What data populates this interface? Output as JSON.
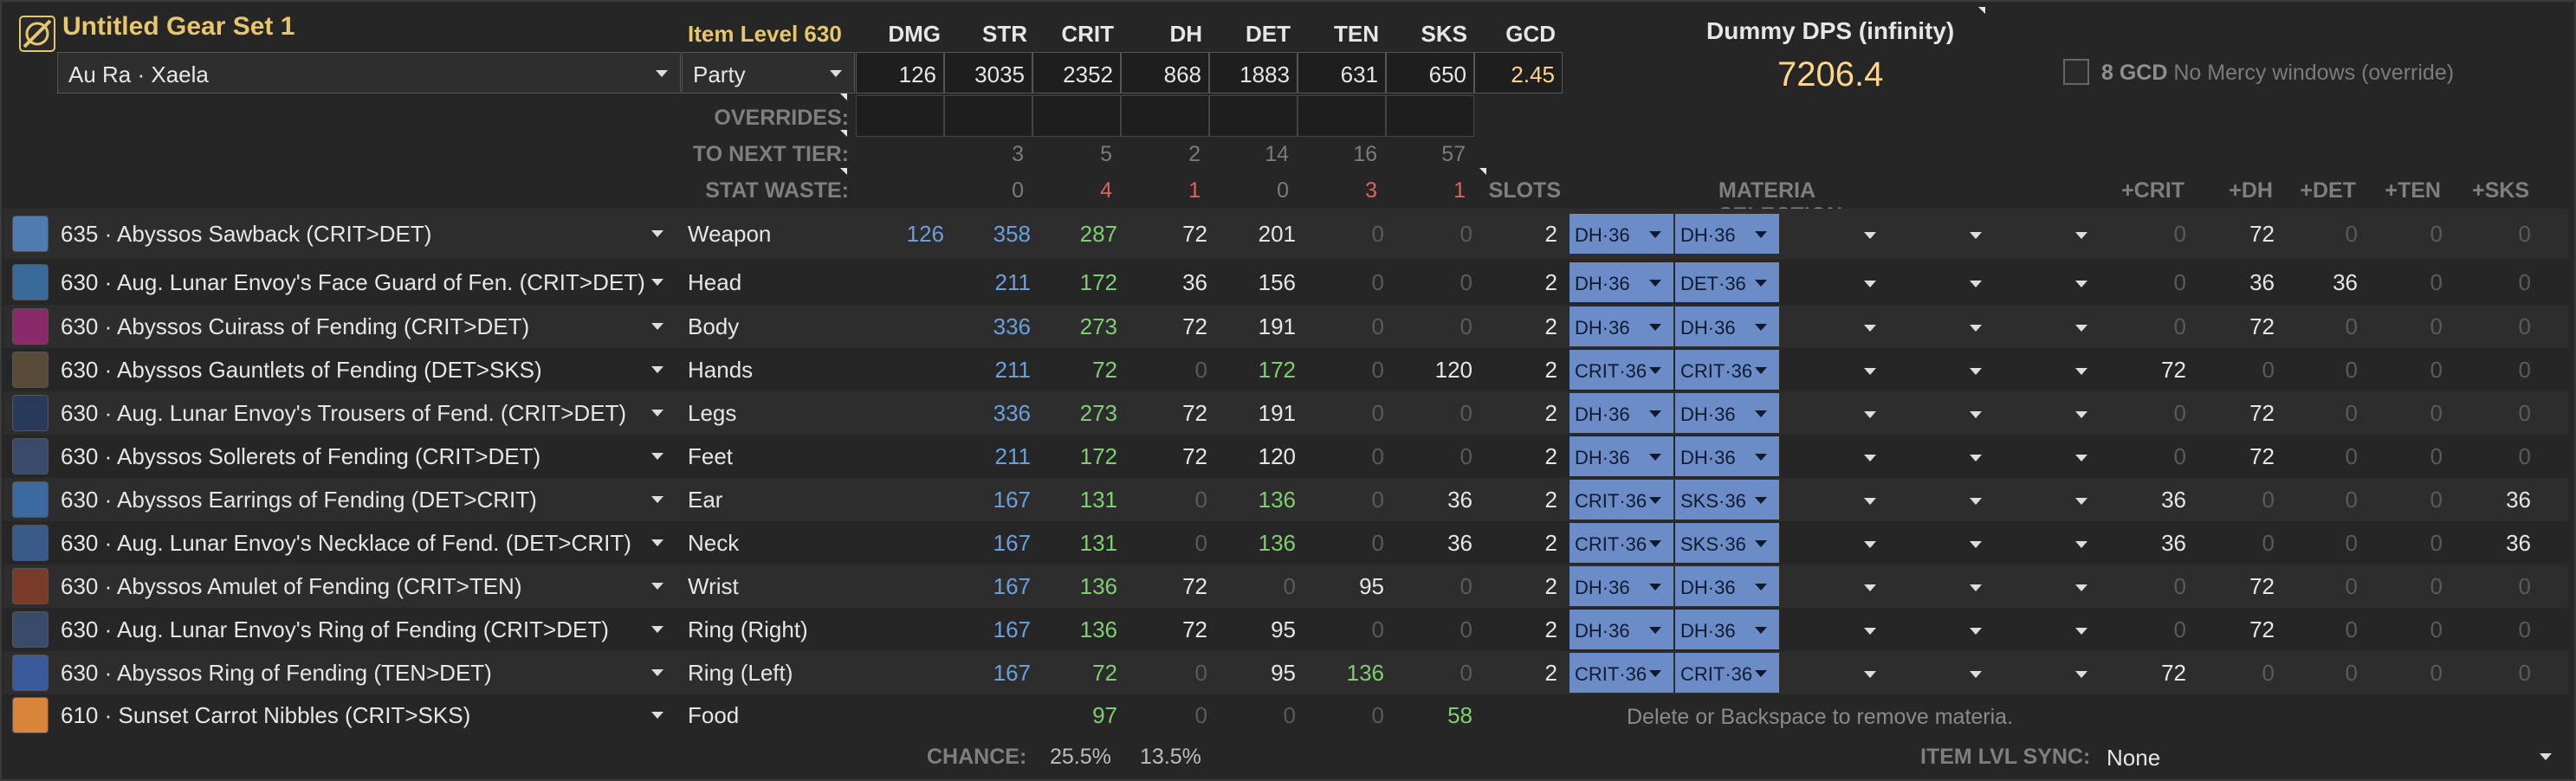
{
  "header": {
    "set_title": "Untitled Gear Set 1",
    "race": "Au Ra · Xaela",
    "party": "Party",
    "item_level": "Item Level 630",
    "stat_names": [
      "DMG",
      "STR",
      "CRIT",
      "DH",
      "DET",
      "TEN",
      "SKS",
      "GCD"
    ],
    "totals": [
      "126",
      "3035",
      "2352",
      "868",
      "1883",
      "631",
      "650",
      "2.45"
    ],
    "overrides_label": "OVERRIDES:",
    "next_tier_label": "TO NEXT TIER:",
    "next_tier": [
      "3",
      "5",
      "2",
      "14",
      "16",
      "57"
    ],
    "waste_label": "STAT WASTE:",
    "waste": [
      "0",
      "4",
      "1",
      "0",
      "3",
      "1"
    ],
    "slots_label": "SLOTS",
    "materia_label": "MATERIA SELECTION",
    "bonus_cols": [
      "+CRIT",
      "+DH",
      "+DET",
      "+TEN",
      "+SKS"
    ]
  },
  "dps": {
    "title": "Dummy DPS (infinity)",
    "value": "7206.4",
    "checkbox_num": "8 GCD",
    "checkbox_text": "No Mercy windows (override)"
  },
  "rows": [
    {
      "name": "635 · Abyssos Sawback (CRIT>DET)",
      "slot": "Weapon",
      "dmg": "126",
      "str": "358",
      "crit": "287",
      "dh": "72",
      "det": "201",
      "ten": "0",
      "sks": "0",
      "slots": "2",
      "m1": "DH·36",
      "m2": "DH·36",
      "b": [
        "0",
        "72",
        "0",
        "0",
        "0"
      ],
      "icon_color": "#4e7bb0"
    },
    {
      "name": "630 · Aug. Lunar Envoy's Face Guard of Fen. (CRIT>DET)",
      "slot": "Head",
      "dmg": "",
      "str": "211",
      "crit": "172",
      "dh": "36",
      "det": "156",
      "ten": "0",
      "sks": "0",
      "slots": "2",
      "m1": "DH·36",
      "m2": "DET·36",
      "b": [
        "0",
        "36",
        "36",
        "0",
        "0"
      ],
      "icon_color": "#3a6a9a"
    },
    {
      "name": "630 · Abyssos Cuirass of Fending (CRIT>DET)",
      "slot": "Body",
      "dmg": "",
      "str": "336",
      "crit": "273",
      "dh": "72",
      "det": "191",
      "ten": "0",
      "sks": "0",
      "slots": "2",
      "m1": "DH·36",
      "m2": "DH·36",
      "b": [
        "0",
        "72",
        "0",
        "0",
        "0"
      ],
      "icon_color": "#8a2a6a"
    },
    {
      "name": "630 · Abyssos Gauntlets of Fending (DET>SKS)",
      "slot": "Hands",
      "dmg": "",
      "str": "211",
      "crit": "72",
      "dh": "0",
      "det": "172",
      "ten": "0",
      "sks": "120",
      "slots": "2",
      "m1": "CRIT·36",
      "m2": "CRIT·36",
      "b": [
        "72",
        "0",
        "0",
        "0",
        "0"
      ],
      "icon_color": "#5a4a3a"
    },
    {
      "name": "630 · Aug. Lunar Envoy's Trousers of Fend. (CRIT>DET)",
      "slot": "Legs",
      "dmg": "",
      "str": "336",
      "crit": "273",
      "dh": "72",
      "det": "191",
      "ten": "0",
      "sks": "0",
      "slots": "2",
      "m1": "DH·36",
      "m2": "DH·36",
      "b": [
        "0",
        "72",
        "0",
        "0",
        "0"
      ],
      "icon_color": "#2a3a5a"
    },
    {
      "name": "630 · Abyssos Sollerets of Fending (CRIT>DET)",
      "slot": "Feet",
      "dmg": "",
      "str": "211",
      "crit": "172",
      "dh": "72",
      "det": "120",
      "ten": "0",
      "sks": "0",
      "slots": "2",
      "m1": "DH·36",
      "m2": "DH·36",
      "b": [
        "0",
        "72",
        "0",
        "0",
        "0"
      ],
      "icon_color": "#3a4a6a"
    },
    {
      "name": "630 · Abyssos Earrings of Fending (DET>CRIT)",
      "slot": "Ear",
      "dmg": "",
      "str": "167",
      "crit": "131",
      "dh": "0",
      "det": "136",
      "ten": "0",
      "sks": "36",
      "slots": "2",
      "m1": "CRIT·36",
      "m2": "SKS·36",
      "b": [
        "36",
        "0",
        "0",
        "0",
        "36"
      ],
      "icon_color": "#3a6aa0"
    },
    {
      "name": "630 · Aug. Lunar Envoy's Necklace of Fend. (DET>CRIT)",
      "slot": "Neck",
      "dmg": "",
      "str": "167",
      "crit": "131",
      "dh": "0",
      "det": "136",
      "ten": "0",
      "sks": "36",
      "slots": "2",
      "m1": "CRIT·36",
      "m2": "SKS·36",
      "b": [
        "36",
        "0",
        "0",
        "0",
        "36"
      ],
      "icon_color": "#3a5a8a"
    },
    {
      "name": "630 · Abyssos Amulet of Fending (CRIT>TEN)",
      "slot": "Wrist",
      "dmg": "",
      "str": "167",
      "crit": "136",
      "dh": "72",
      "det": "0",
      "ten": "95",
      "sks": "0",
      "slots": "2",
      "m1": "DH·36",
      "m2": "DH·36",
      "b": [
        "0",
        "72",
        "0",
        "0",
        "0"
      ],
      "icon_color": "#7a3a2a"
    },
    {
      "name": "630 · Aug. Lunar Envoy's Ring of Fending (CRIT>DET)",
      "slot": "Ring (Right)",
      "dmg": "",
      "str": "167",
      "crit": "136",
      "dh": "72",
      "det": "95",
      "ten": "0",
      "sks": "0",
      "slots": "2",
      "m1": "DH·36",
      "m2": "DH·36",
      "b": [
        "0",
        "72",
        "0",
        "0",
        "0"
      ],
      "icon_color": "#3a4a6a"
    },
    {
      "name": "630 · Abyssos Ring of Fending (TEN>DET)",
      "slot": "Ring (Left)",
      "dmg": "",
      "str": "167",
      "crit": "72",
      "dh": "0",
      "det": "95",
      "ten": "136",
      "sks": "0",
      "slots": "2",
      "m1": "CRIT·36",
      "m2": "CRIT·36",
      "b": [
        "72",
        "0",
        "0",
        "0",
        "0"
      ],
      "icon_color": "#3a5a9a"
    },
    {
      "name": "610 · Sunset Carrot Nibbles (CRIT>SKS)",
      "slot": "Food",
      "dmg": "",
      "str": "",
      "crit": "97",
      "dh": "0",
      "det": "0",
      "ten": "0",
      "sks": "58",
      "slots": "",
      "m1": "",
      "m2": "",
      "b": [
        "",
        "",
        "",
        "",
        ""
      ],
      "icon_color": "#d8843a"
    }
  ],
  "hint": "Delete or Backspace to remove materia.",
  "footer": {
    "chance_label": "CHANCE:",
    "chance_crit": "25.5%",
    "chance_dh": "13.5%",
    "sync_label": "ITEM LVL SYNC:",
    "sync_value": "None"
  }
}
